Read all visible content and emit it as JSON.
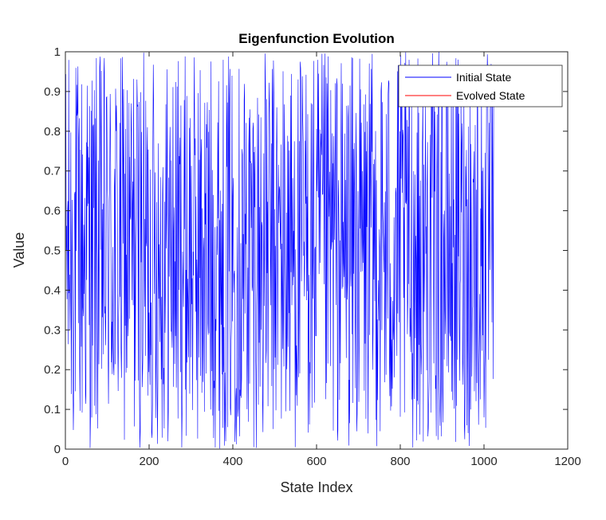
{
  "chart_data": {
    "type": "line",
    "title": "Eigenfunction Evolution",
    "xlabel": "State Index",
    "ylabel": "Value",
    "xlim": [
      0,
      1200
    ],
    "ylim": [
      0,
      1
    ],
    "xticks": [
      "0",
      "200",
      "400",
      "600",
      "800",
      "1000",
      "1200"
    ],
    "yticks": [
      "0",
      "0.1",
      "0.2",
      "0.3",
      "0.4",
      "0.5",
      "0.6",
      "0.7",
      "0.8",
      "0.9",
      "1"
    ],
    "grid": false,
    "legend_position": "top-right",
    "x_range": [
      1,
      1024
    ],
    "value_range": [
      0,
      1
    ],
    "series": [
      {
        "name": "Initial State",
        "color": "#0000ff",
        "values_description": "1024 random values uniformly spread between 0 and 1"
      },
      {
        "name": "Evolved State",
        "color": "#ff0000",
        "values_description": "not visible (hidden behind / absent)"
      }
    ]
  }
}
